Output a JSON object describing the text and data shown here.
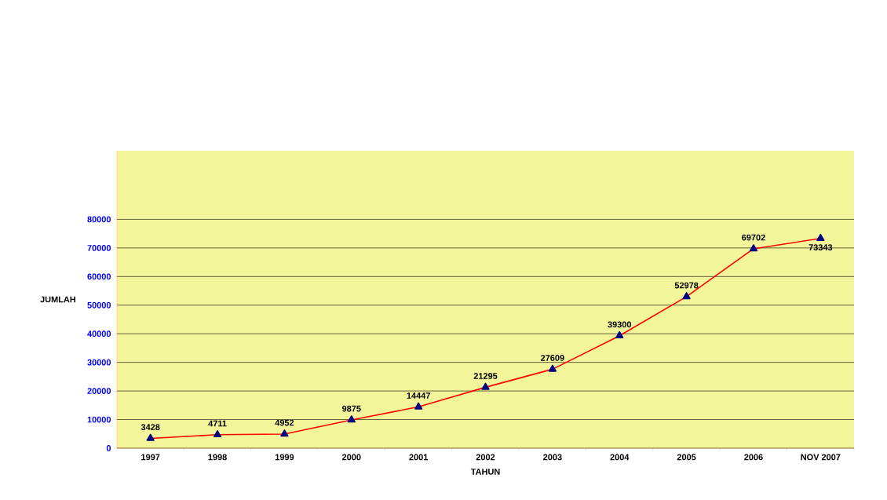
{
  "chart_data": {
    "type": "line",
    "xlabel": "TAHUN",
    "ylabel": "JUMLAH",
    "categories": [
      "1997",
      "1998",
      "1999",
      "2000",
      "2001",
      "2002",
      "2003",
      "2004",
      "2005",
      "2006",
      "NOV 2007"
    ],
    "values": [
      3428,
      4711,
      4952,
      9875,
      14447,
      21295,
      27609,
      39300,
      52978,
      69702,
      73343
    ],
    "color": "#ff0000",
    "marker": "triangle",
    "ylim": [
      0,
      104000
    ],
    "yticks": [
      0,
      10000,
      20000,
      30000,
      40000,
      50000,
      60000,
      70000,
      80000
    ],
    "grid": "y",
    "data_labels": true
  }
}
